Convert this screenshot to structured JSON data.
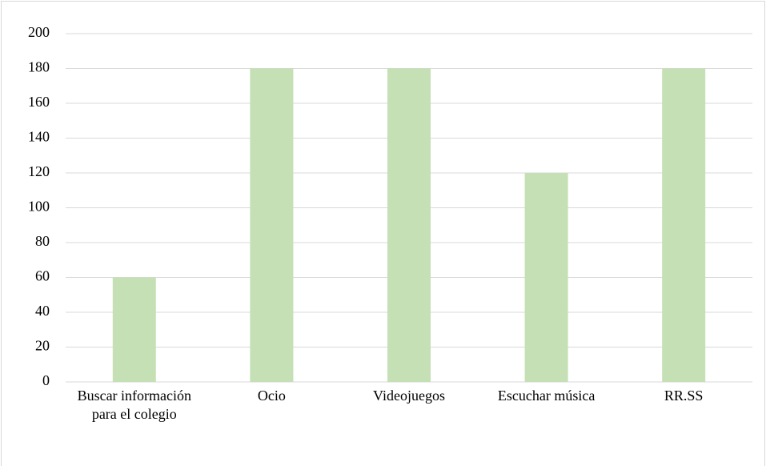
{
  "chart_data": {
    "type": "bar",
    "categories": [
      "Buscar información para el colegio",
      "Ocio",
      "Videojuegos",
      "Escuchar música",
      "RR.SS"
    ],
    "values": [
      60,
      180,
      180,
      120,
      180
    ],
    "color": "#c5e0b4",
    "ylim": [
      0,
      200
    ],
    "yticks": [
      0,
      20,
      40,
      60,
      80,
      100,
      120,
      140,
      160,
      180,
      200
    ],
    "grid": true
  }
}
